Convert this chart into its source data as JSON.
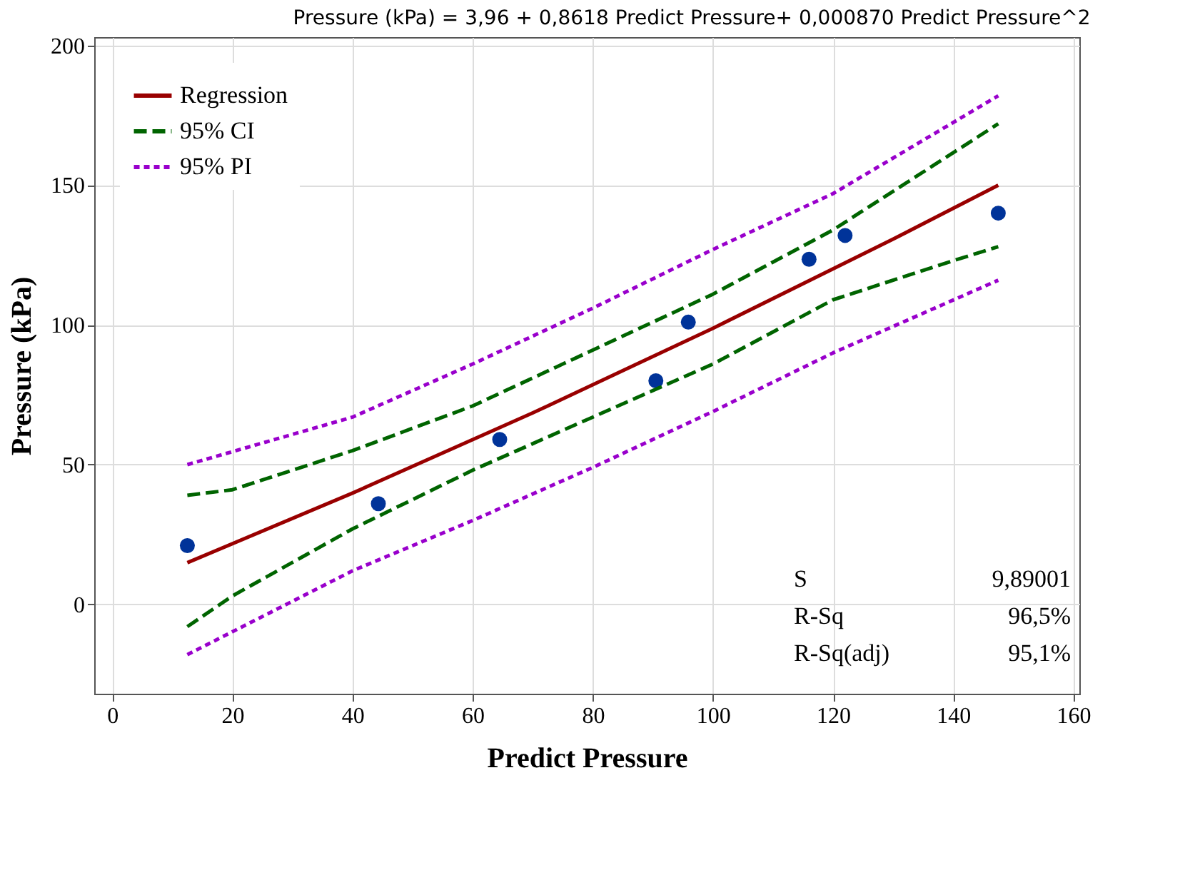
{
  "chart_data": {
    "type": "scatter",
    "title": "Pressure (kPa) = 3,96 + 0,8618 Predict Pressure+ 0,000870 Predict Pressure^2",
    "xlabel": "Predict Pressure",
    "ylabel": "Pressure (kPa)",
    "xlim": [
      -3,
      161
    ],
    "ylim": [
      -32,
      203
    ],
    "xticks": [
      0,
      20,
      40,
      60,
      80,
      100,
      120,
      140,
      160
    ],
    "yticks": [
      0,
      50,
      100,
      150,
      200
    ],
    "grid": true,
    "legend": "top left",
    "series": [
      {
        "color": "#003399",
        "marker": "circle",
        "x": [
          12.5,
          44.3,
          64.5,
          90.5,
          95.9,
          116,
          122,
          147.5
        ],
        "values": [
          21,
          36,
          59,
          80,
          101,
          123.5,
          132,
          140
        ]
      },
      {
        "type": "line",
        "name": "Regression",
        "color": "#990000",
        "line_style": "solid",
        "x": [
          12.5,
          40,
          70,
          100,
          130,
          147.5
        ],
        "values": [
          14.9,
          39.8,
          68.5,
          98.8,
          130.7,
          150
        ]
      },
      {
        "type": "line",
        "name": "95% CI",
        "color": "#006400",
        "line_style": "dashed",
        "x": [
          12.5,
          20,
          40,
          60,
          80,
          100,
          120,
          147.5
        ],
        "values": [
          39,
          41,
          55,
          71,
          91,
          111,
          134,
          172
        ]
      },
      {
        "type": "line",
        "color": "#006400",
        "line_style": "dashed",
        "x": [
          12.5,
          20,
          40,
          60,
          80,
          100,
          120,
          140,
          147.5
        ],
        "values": [
          -8,
          3,
          27,
          48,
          67,
          86,
          109,
          123,
          128
        ]
      },
      {
        "type": "line",
        "name": "95% PI",
        "color": "#9900cc",
        "line_style": "dotted",
        "x": [
          12.5,
          40,
          60,
          80,
          100,
          120,
          147.5
        ],
        "values": [
          50,
          67,
          86,
          106,
          127,
          147,
          182
        ]
      },
      {
        "type": "line",
        "color": "#9900cc",
        "line_style": "dotted",
        "x": [
          12.5,
          40,
          60,
          80,
          100,
          120,
          147.5
        ],
        "values": [
          -18,
          12,
          30,
          49,
          69,
          90,
          116
        ]
      }
    ],
    "annotations": [
      "S 9,89001",
      "R-Sq 96,5%",
      "R-Sq(adj) 95,1%"
    ]
  }
}
